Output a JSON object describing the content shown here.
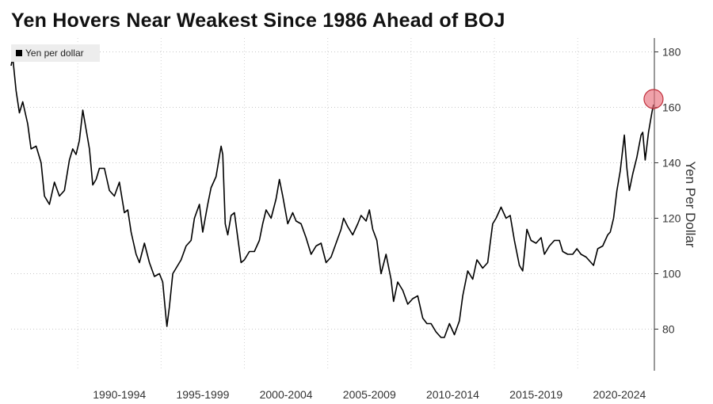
{
  "title": "Yen Hovers Near Weakest Since 1986 Ahead of BOJ",
  "chart_data": {
    "type": "line",
    "title": "Yen Hovers Near Weakest Since 1986 Ahead of BOJ",
    "ylabel": "Yen Per Dollar",
    "xlabel": "",
    "ylim": [
      65,
      185
    ],
    "yticks": [
      80,
      100,
      120,
      140,
      160,
      180
    ],
    "xlim": [
      1986.0,
      2024.6
    ],
    "x_tick_labels": [
      {
        "label": "1990-1994",
        "x": 1992.5
      },
      {
        "label": "1995-1999",
        "x": 1997.5
      },
      {
        "label": "2000-2004",
        "x": 2002.5
      },
      {
        "label": "2005-2009",
        "x": 2007.5
      },
      {
        "label": "2010-2014",
        "x": 2012.5
      },
      {
        "label": "2015-2019",
        "x": 2017.5
      },
      {
        "label": "2020-2024",
        "x": 2022.5
      }
    ],
    "grid": true,
    "legend_position": "top-left",
    "series": [
      {
        "name": "Yen per dollar",
        "color": "#000000",
        "points": [
          [
            1986.0,
            175
          ],
          [
            1986.1,
            178
          ],
          [
            1986.3,
            166
          ],
          [
            1986.5,
            158
          ],
          [
            1986.7,
            162
          ],
          [
            1987.0,
            154
          ],
          [
            1987.2,
            145
          ],
          [
            1987.5,
            146
          ],
          [
            1987.8,
            140
          ],
          [
            1988.0,
            128
          ],
          [
            1988.3,
            125
          ],
          [
            1988.6,
            133
          ],
          [
            1988.9,
            128
          ],
          [
            1989.2,
            130
          ],
          [
            1989.5,
            141
          ],
          [
            1989.7,
            145
          ],
          [
            1989.9,
            143
          ],
          [
            1990.1,
            148
          ],
          [
            1990.3,
            159
          ],
          [
            1990.5,
            152
          ],
          [
            1990.7,
            145
          ],
          [
            1990.9,
            132
          ],
          [
            1991.1,
            134
          ],
          [
            1991.3,
            138
          ],
          [
            1991.6,
            138
          ],
          [
            1991.9,
            130
          ],
          [
            1992.2,
            128
          ],
          [
            1992.5,
            133
          ],
          [
            1992.8,
            122
          ],
          [
            1993.0,
            123
          ],
          [
            1993.2,
            115
          ],
          [
            1993.5,
            107
          ],
          [
            1993.7,
            104
          ],
          [
            1994.0,
            111
          ],
          [
            1994.3,
            104
          ],
          [
            1994.6,
            99
          ],
          [
            1994.9,
            100
          ],
          [
            1995.1,
            97
          ],
          [
            1995.3,
            84
          ],
          [
            1995.35,
            81
          ],
          [
            1995.5,
            88
          ],
          [
            1995.7,
            100
          ],
          [
            1995.9,
            102
          ],
          [
            1996.2,
            105
          ],
          [
            1996.5,
            110
          ],
          [
            1996.8,
            112
          ],
          [
            1997.0,
            120
          ],
          [
            1997.3,
            125
          ],
          [
            1997.5,
            115
          ],
          [
            1997.8,
            125
          ],
          [
            1998.0,
            131
          ],
          [
            1998.3,
            135
          ],
          [
            1998.6,
            146
          ],
          [
            1998.7,
            143
          ],
          [
            1998.85,
            118
          ],
          [
            1999.0,
            114
          ],
          [
            1999.2,
            121
          ],
          [
            1999.4,
            122
          ],
          [
            1999.6,
            113
          ],
          [
            1999.8,
            104
          ],
          [
            2000.0,
            105
          ],
          [
            2000.3,
            108
          ],
          [
            2000.6,
            108
          ],
          [
            2000.9,
            112
          ],
          [
            2001.1,
            118
          ],
          [
            2001.3,
            123
          ],
          [
            2001.6,
            120
          ],
          [
            2001.9,
            127
          ],
          [
            2002.1,
            134
          ],
          [
            2002.3,
            128
          ],
          [
            2002.6,
            118
          ],
          [
            2002.9,
            122
          ],
          [
            2003.1,
            119
          ],
          [
            2003.4,
            118
          ],
          [
            2003.7,
            113
          ],
          [
            2004.0,
            107
          ],
          [
            2004.3,
            110
          ],
          [
            2004.6,
            111
          ],
          [
            2004.9,
            104
          ],
          [
            2005.2,
            106
          ],
          [
            2005.5,
            111
          ],
          [
            2005.8,
            116
          ],
          [
            2005.95,
            120
          ],
          [
            2006.2,
            117
          ],
          [
            2006.5,
            114
          ],
          [
            2006.8,
            118
          ],
          [
            2007.0,
            121
          ],
          [
            2007.3,
            119
          ],
          [
            2007.5,
            123
          ],
          [
            2007.7,
            116
          ],
          [
            2007.95,
            112
          ],
          [
            2008.2,
            100
          ],
          [
            2008.5,
            107
          ],
          [
            2008.8,
            98
          ],
          [
            2008.95,
            90
          ],
          [
            2009.2,
            97
          ],
          [
            2009.5,
            94
          ],
          [
            2009.8,
            89
          ],
          [
            2010.1,
            91
          ],
          [
            2010.4,
            92
          ],
          [
            2010.7,
            84
          ],
          [
            2010.95,
            82
          ],
          [
            2011.2,
            82
          ],
          [
            2011.5,
            79
          ],
          [
            2011.8,
            77
          ],
          [
            2012.0,
            77
          ],
          [
            2012.3,
            82
          ],
          [
            2012.6,
            78
          ],
          [
            2012.9,
            83
          ],
          [
            2013.1,
            92
          ],
          [
            2013.4,
            101
          ],
          [
            2013.7,
            98
          ],
          [
            2013.95,
            105
          ],
          [
            2014.3,
            102
          ],
          [
            2014.6,
            104
          ],
          [
            2014.9,
            118
          ],
          [
            2015.1,
            120
          ],
          [
            2015.4,
            124
          ],
          [
            2015.7,
            120
          ],
          [
            2015.95,
            121
          ],
          [
            2016.2,
            112
          ],
          [
            2016.5,
            103
          ],
          [
            2016.7,
            101
          ],
          [
            2016.95,
            116
          ],
          [
            2017.2,
            112
          ],
          [
            2017.5,
            111
          ],
          [
            2017.8,
            113
          ],
          [
            2018.0,
            107
          ],
          [
            2018.3,
            110
          ],
          [
            2018.6,
            112
          ],
          [
            2018.9,
            112
          ],
          [
            2019.1,
            108
          ],
          [
            2019.4,
            107
          ],
          [
            2019.7,
            107
          ],
          [
            2019.95,
            109
          ],
          [
            2020.2,
            107
          ],
          [
            2020.5,
            106
          ],
          [
            2020.8,
            104
          ],
          [
            2020.95,
            103
          ],
          [
            2021.2,
            109
          ],
          [
            2021.5,
            110
          ],
          [
            2021.8,
            114
          ],
          [
            2021.95,
            115
          ],
          [
            2022.15,
            120
          ],
          [
            2022.35,
            130
          ],
          [
            2022.55,
            137
          ],
          [
            2022.8,
            150
          ],
          [
            2022.95,
            138
          ],
          [
            2023.1,
            130
          ],
          [
            2023.3,
            136
          ],
          [
            2023.55,
            142
          ],
          [
            2023.8,
            150
          ],
          [
            2023.9,
            151
          ],
          [
            2024.05,
            141
          ],
          [
            2024.25,
            151
          ],
          [
            2024.45,
            158
          ],
          [
            2024.55,
            161
          ]
        ]
      }
    ],
    "annotations": [
      {
        "type": "circle-marker",
        "x": 2024.55,
        "y": 163,
        "color": "#e8707c"
      }
    ]
  }
}
